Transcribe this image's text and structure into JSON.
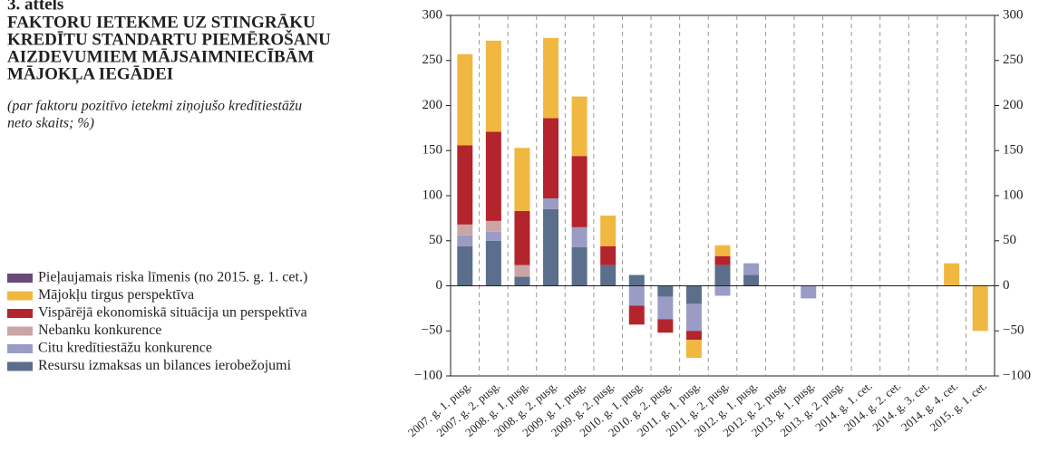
{
  "chart_data": {
    "type": "stacked_bar",
    "figure_label": "3. attēls",
    "title": [
      "FAKTORU IETEKME UZ STINGRĀKU",
      "KREDĪTU STANDARTU PIEMĒROŠANU",
      "AIZDEVUMIEM MĀJSAIMNIECĪBĀM",
      "MĀJOKĻA IEGĀDEI"
    ],
    "subtitle": [
      "(par faktoru pozitīvo ietekmi ziņojušo kredītiestāžu",
      "neto skaits; %)"
    ],
    "categories": [
      "2007. g. 1. pusg.",
      "2007. g. 2. pusg.",
      "2008. g. 1. pusg.",
      "2008. g. 2. pusg.",
      "2009. g. 1. pusg.",
      "2009. g. 2. pusg.",
      "2010. g. 1. pusg.",
      "2010. g. 2. pusg.",
      "2011. g. 1. pusg.",
      "2011. g. 2. pusg.",
      "2012. g. 1. pusg.",
      "2012. g. 2. pusg.",
      "2013. g. 1. pusg.",
      "2013. g. 2. pusg.",
      "2014. g. 1. cet.",
      "2014. g. 2. cet.",
      "2014. g. 3. cet.",
      "2014. g. 4. cet.",
      "2015. g. 1. cet."
    ],
    "series": [
      {
        "name": "Resursu izmaksas un bilances ierobežojumi",
        "color": "#5b6e8b",
        "values": [
          44,
          50,
          10,
          85,
          43,
          23,
          12,
          -12,
          -20,
          23,
          12,
          0,
          0,
          0,
          0,
          0,
          0,
          0,
          0
        ]
      },
      {
        "name": "Citu kredītiestāžu konkurence",
        "color": "#9a9cc6",
        "values": [
          12,
          10,
          0,
          12,
          22,
          0,
          -22,
          -25,
          -30,
          -11,
          13,
          0,
          -14,
          0,
          0,
          0,
          0,
          0,
          0
        ]
      },
      {
        "name": "Nebanku konkurence",
        "color": "#c9a6a5",
        "values": [
          12,
          12,
          13,
          0,
          0,
          0,
          0,
          0,
          0,
          0,
          0,
          0,
          0,
          0,
          0,
          0,
          0,
          0,
          0
        ]
      },
      {
        "name": "Vispārējā ekonomiskā situācija un perspektīva",
        "color": "#b3242d",
        "values": [
          88,
          99,
          60,
          89,
          79,
          21,
          -21,
          -15,
          -10,
          10,
          0,
          0,
          0,
          0,
          0,
          0,
          0,
          0,
          0
        ]
      },
      {
        "name": "Mājokļu tirgus perspektīva",
        "color": "#f0b841",
        "values": [
          101,
          101,
          70,
          89,
          66,
          34,
          0,
          0,
          -20,
          12,
          0,
          0,
          0,
          0,
          0,
          0,
          0,
          25,
          -50
        ]
      },
      {
        "name": "Pieļaujamais riska līmenis (no 2015. g. 1. cet.)",
        "color": "#6a4a78",
        "values": [
          0,
          0,
          0,
          0,
          0,
          0,
          0,
          0,
          0,
          0,
          0,
          0,
          0,
          0,
          0,
          0,
          0,
          0,
          0
        ]
      }
    ],
    "ylim": [
      -100,
      300
    ],
    "yticks": [
      {
        "value": -100,
        "label": "−100"
      },
      {
        "value": -50,
        "label": "−50"
      },
      0,
      50,
      100,
      150,
      200,
      250,
      300
    ]
  }
}
